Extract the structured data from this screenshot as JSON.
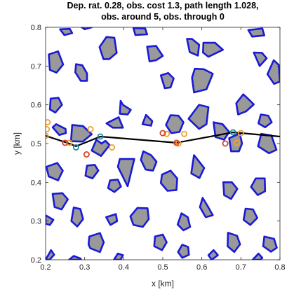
{
  "chart_data": {
    "type": "scatter",
    "title_lines": [
      "Dep. rat. 0.28, obs. cost 1.3, path length 1.028,",
      "obs. around 5, obs. through 0"
    ],
    "xlabel": "x [km]",
    "ylabel": "y [km]",
    "xlim": [
      0.2,
      0.8
    ],
    "ylim": [
      0.2,
      0.8
    ],
    "x_ticks": [
      0.2,
      0.3,
      0.4,
      0.5,
      0.6,
      0.7,
      0.8
    ],
    "y_ticks": [
      0.2,
      0.3,
      0.4,
      0.5,
      0.6,
      0.7,
      0.8
    ],
    "x_tick_labels": [
      "0.2",
      "0.3",
      "0.4",
      "0.5",
      "0.6",
      "0.7",
      "0.8"
    ],
    "y_tick_labels": [
      "0.2",
      "0.3",
      "0.4",
      "0.5",
      "0.6",
      "0.7",
      "0.8"
    ],
    "grid": false,
    "colors": {
      "obstacle_fill": "#999999",
      "obstacle_edge": "#1a1ad6",
      "path": "#000000",
      "orange_marker": "#f0a030",
      "red_marker": "#d9442a",
      "teal_marker": "#1f8aa8"
    },
    "path": [
      [
        0.2,
        0.52
      ],
      [
        0.255,
        0.502
      ],
      [
        0.278,
        0.493
      ],
      [
        0.34,
        0.518
      ],
      [
        0.535,
        0.502
      ],
      [
        0.68,
        0.529
      ],
      [
        0.8,
        0.518
      ]
    ],
    "markers": {
      "orange": [
        [
          0.2,
          0.52
        ],
        [
          0.203,
          0.537
        ],
        [
          0.205,
          0.555
        ],
        [
          0.261,
          0.502
        ],
        [
          0.315,
          0.537
        ],
        [
          0.37,
          0.49
        ],
        [
          0.51,
          0.525
        ],
        [
          0.54,
          0.5
        ],
        [
          0.555,
          0.525
        ],
        [
          0.69,
          0.502
        ],
        [
          0.7,
          0.527
        ]
      ],
      "red": [
        [
          0.25,
          0.502
        ],
        [
          0.305,
          0.472
        ],
        [
          0.5,
          0.527
        ],
        [
          0.535,
          0.502
        ],
        [
          0.66,
          0.5
        ]
      ],
      "teal": [
        [
          0.278,
          0.49
        ],
        [
          0.34,
          0.518
        ],
        [
          0.68,
          0.529
        ]
      ]
    },
    "obstacles": [
      [
        [
          0.237,
          0.795
        ],
        [
          0.262,
          0.796
        ],
        [
          0.268,
          0.785
        ],
        [
          0.248,
          0.78
        ]
      ],
      [
        [
          0.295,
          0.815
        ],
        [
          0.313,
          0.812
        ],
        [
          0.318,
          0.8
        ],
        [
          0.3,
          0.795
        ],
        [
          0.288,
          0.803
        ]
      ],
      [
        [
          0.356,
          0.775
        ],
        [
          0.376,
          0.773
        ],
        [
          0.382,
          0.734
        ],
        [
          0.363,
          0.718
        ],
        [
          0.348,
          0.718
        ],
        [
          0.338,
          0.749
        ]
      ],
      [
        [
          0.425,
          0.798
        ],
        [
          0.455,
          0.797
        ],
        [
          0.46,
          0.782
        ],
        [
          0.43,
          0.78
        ]
      ],
      [
        [
          0.46,
          0.75
        ],
        [
          0.483,
          0.752
        ],
        [
          0.5,
          0.726
        ],
        [
          0.483,
          0.715
        ],
        [
          0.466,
          0.712
        ]
      ],
      [
        [
          0.562,
          0.77
        ],
        [
          0.569,
          0.736
        ],
        [
          0.59,
          0.727
        ],
        [
          0.593,
          0.755
        ],
        [
          0.575,
          0.77
        ]
      ],
      [
        [
          0.604,
          0.76
        ],
        [
          0.634,
          0.76
        ],
        [
          0.654,
          0.742
        ],
        [
          0.617,
          0.724
        ],
        [
          0.603,
          0.735
        ]
      ],
      [
        [
          0.208,
          0.73
        ],
        [
          0.232,
          0.738
        ],
        [
          0.245,
          0.704
        ],
        [
          0.228,
          0.683
        ],
        [
          0.211,
          0.69
        ]
      ],
      [
        [
          0.278,
          0.705
        ],
        [
          0.294,
          0.702
        ],
        [
          0.306,
          0.681
        ],
        [
          0.306,
          0.662
        ],
        [
          0.29,
          0.662
        ],
        [
          0.276,
          0.684
        ]
      ],
      [
        [
          0.733,
          0.735
        ],
        [
          0.754,
          0.734
        ],
        [
          0.766,
          0.72
        ],
        [
          0.748,
          0.7
        ]
      ],
      [
        [
          0.719,
          0.793
        ],
        [
          0.755,
          0.797
        ],
        [
          0.76,
          0.779
        ],
        [
          0.729,
          0.776
        ]
      ],
      [
        [
          0.582,
          0.693
        ],
        [
          0.605,
          0.692
        ],
        [
          0.628,
          0.68
        ],
        [
          0.612,
          0.64
        ],
        [
          0.58,
          0.632
        ],
        [
          0.575,
          0.67
        ]
      ],
      [
        [
          0.495,
          0.676
        ],
        [
          0.514,
          0.682
        ],
        [
          0.528,
          0.668
        ],
        [
          0.52,
          0.645
        ],
        [
          0.505,
          0.643
        ]
      ],
      [
        [
          0.768,
          0.679
        ],
        [
          0.784,
          0.715
        ],
        [
          0.797,
          0.703
        ],
        [
          0.8,
          0.66
        ],
        [
          0.785,
          0.654
        ]
      ],
      [
        [
          0.706,
          0.627
        ],
        [
          0.722,
          0.612
        ],
        [
          0.733,
          0.601
        ],
        [
          0.713,
          0.583
        ],
        [
          0.693,
          0.575
        ],
        [
          0.688,
          0.604
        ]
      ],
      [
        [
          0.213,
          0.616
        ],
        [
          0.233,
          0.618
        ],
        [
          0.242,
          0.6
        ],
        [
          0.225,
          0.58
        ],
        [
          0.211,
          0.588
        ]
      ],
      [
        [
          0.392,
          0.61
        ],
        [
          0.398,
          0.6
        ],
        [
          0.418,
          0.587
        ],
        [
          0.41,
          0.575
        ],
        [
          0.39,
          0.577
        ]
      ],
      [
        [
          0.387,
          0.568
        ],
        [
          0.398,
          0.541
        ],
        [
          0.372,
          0.541
        ],
        [
          0.356,
          0.552
        ]
      ],
      [
        [
          0.593,
          0.6
        ],
        [
          0.617,
          0.594
        ],
        [
          0.612,
          0.55
        ],
        [
          0.593,
          0.538
        ],
        [
          0.566,
          0.564
        ]
      ],
      [
        [
          0.457,
          0.574
        ],
        [
          0.473,
          0.558
        ],
        [
          0.47,
          0.546
        ],
        [
          0.448,
          0.55
        ]
      ],
      [
        [
          0.227,
          0.55
        ],
        [
          0.251,
          0.538
        ],
        [
          0.252,
          0.527
        ],
        [
          0.235,
          0.522
        ],
        [
          0.218,
          0.542
        ]
      ],
      [
        [
          0.52,
          0.573
        ],
        [
          0.54,
          0.572
        ],
        [
          0.553,
          0.555
        ],
        [
          0.543,
          0.53
        ],
        [
          0.522,
          0.527
        ],
        [
          0.508,
          0.548
        ]
      ],
      [
        [
          0.268,
          0.548
        ],
        [
          0.296,
          0.545
        ],
        [
          0.318,
          0.524
        ],
        [
          0.295,
          0.505
        ],
        [
          0.265,
          0.506
        ]
      ],
      [
        [
          0.33,
          0.51
        ],
        [
          0.343,
          0.5
        ],
        [
          0.353,
          0.507
        ],
        [
          0.364,
          0.496
        ],
        [
          0.342,
          0.468
        ],
        [
          0.318,
          0.482
        ]
      ],
      [
        [
          0.63,
          0.555
        ],
        [
          0.653,
          0.55
        ],
        [
          0.67,
          0.53
        ],
        [
          0.657,
          0.51
        ],
        [
          0.635,
          0.517
        ]
      ],
      [
        [
          0.751,
          0.575
        ],
        [
          0.77,
          0.572
        ],
        [
          0.779,
          0.555
        ],
        [
          0.762,
          0.542
        ],
        [
          0.745,
          0.552
        ]
      ],
      [
        [
          0.752,
          0.525
        ],
        [
          0.778,
          0.521
        ],
        [
          0.791,
          0.484
        ],
        [
          0.772,
          0.475
        ],
        [
          0.744,
          0.493
        ]
      ],
      [
        [
          0.67,
          0.514
        ],
        [
          0.697,
          0.526
        ],
        [
          0.703,
          0.5
        ],
        [
          0.695,
          0.48
        ],
        [
          0.675,
          0.48
        ]
      ],
      [
        [
          0.202,
          0.44
        ],
        [
          0.23,
          0.45
        ],
        [
          0.244,
          0.43
        ],
        [
          0.232,
          0.405
        ],
        [
          0.208,
          0.415
        ]
      ],
      [
        [
          0.415,
          0.41
        ],
        [
          0.427,
          0.46
        ],
        [
          0.39,
          0.46
        ],
        [
          0.385,
          0.44
        ],
        [
          0.41,
          0.39
        ]
      ],
      [
        [
          0.45,
          0.48
        ],
        [
          0.47,
          0.47
        ],
        [
          0.484,
          0.453
        ],
        [
          0.475,
          0.43
        ],
        [
          0.456,
          0.433
        ],
        [
          0.444,
          0.458
        ]
      ],
      [
        [
          0.58,
          0.47
        ],
        [
          0.592,
          0.455
        ],
        [
          0.606,
          0.437
        ],
        [
          0.594,
          0.411
        ],
        [
          0.573,
          0.423
        ]
      ],
      [
        [
          0.306,
          0.443
        ],
        [
          0.326,
          0.445
        ],
        [
          0.335,
          0.43
        ],
        [
          0.32,
          0.41
        ],
        [
          0.302,
          0.417
        ]
      ],
      [
        [
          0.218,
          0.37
        ],
        [
          0.243,
          0.372
        ],
        [
          0.257,
          0.356
        ],
        [
          0.241,
          0.33
        ],
        [
          0.223,
          0.336
        ]
      ],
      [
        [
          0.498,
          0.42
        ],
        [
          0.52,
          0.43
        ],
        [
          0.537,
          0.41
        ],
        [
          0.535,
          0.38
        ],
        [
          0.512,
          0.378
        ],
        [
          0.495,
          0.398
        ]
      ],
      [
        [
          0.738,
          0.41
        ],
        [
          0.761,
          0.41
        ],
        [
          0.762,
          0.377
        ],
        [
          0.743,
          0.367
        ],
        [
          0.726,
          0.388
        ]
      ],
      [
        [
          0.655,
          0.4
        ],
        [
          0.677,
          0.4
        ],
        [
          0.691,
          0.383
        ],
        [
          0.675,
          0.357
        ],
        [
          0.657,
          0.367
        ]
      ],
      [
        [
          0.365,
          0.405
        ],
        [
          0.385,
          0.407
        ],
        [
          0.393,
          0.389
        ],
        [
          0.376,
          0.375
        ],
        [
          0.36,
          0.385
        ]
      ],
      [
        [
          0.272,
          0.335
        ],
        [
          0.289,
          0.331
        ],
        [
          0.296,
          0.305
        ],
        [
          0.281,
          0.286
        ],
        [
          0.266,
          0.3
        ]
      ],
      [
        [
          0.435,
          0.334
        ],
        [
          0.461,
          0.333
        ],
        [
          0.464,
          0.305
        ],
        [
          0.449,
          0.285
        ],
        [
          0.425,
          0.29
        ],
        [
          0.417,
          0.312
        ]
      ],
      [
        [
          0.2,
          0.315
        ],
        [
          0.22,
          0.303
        ],
        [
          0.211,
          0.29
        ],
        [
          0.2,
          0.293
        ]
      ],
      [
        [
          0.548,
          0.32
        ],
        [
          0.564,
          0.31
        ],
        [
          0.57,
          0.285
        ],
        [
          0.553,
          0.276
        ],
        [
          0.538,
          0.291
        ]
      ],
      [
        [
          0.602,
          0.36
        ],
        [
          0.614,
          0.34
        ],
        [
          0.628,
          0.315
        ],
        [
          0.61,
          0.31
        ],
        [
          0.595,
          0.336
        ]
      ],
      [
        [
          0.38,
          0.318
        ],
        [
          0.383,
          0.3
        ],
        [
          0.366,
          0.29
        ],
        [
          0.355,
          0.31
        ]
      ],
      [
        [
          0.712,
          0.332
        ],
        [
          0.731,
          0.33
        ],
        [
          0.742,
          0.308
        ],
        [
          0.724,
          0.29
        ],
        [
          0.707,
          0.303
        ]
      ],
      [
        [
          0.312,
          0.26
        ],
        [
          0.339,
          0.269
        ],
        [
          0.349,
          0.245
        ],
        [
          0.339,
          0.22
        ],
        [
          0.314,
          0.23
        ],
        [
          0.31,
          0.24
        ]
      ],
      [
        [
          0.48,
          0.26
        ],
        [
          0.5,
          0.265
        ],
        [
          0.51,
          0.245
        ],
        [
          0.498,
          0.225
        ],
        [
          0.478,
          0.235
        ]
      ],
      [
        [
          0.667,
          0.27
        ],
        [
          0.69,
          0.262
        ],
        [
          0.698,
          0.24
        ],
        [
          0.683,
          0.22
        ],
        [
          0.666,
          0.235
        ]
      ],
      [
        [
          0.76,
          0.26
        ],
        [
          0.785,
          0.254
        ],
        [
          0.792,
          0.231
        ],
        [
          0.777,
          0.221
        ],
        [
          0.757,
          0.235
        ]
      ],
      [
        [
          0.55,
          0.239
        ],
        [
          0.565,
          0.233
        ],
        [
          0.567,
          0.213
        ],
        [
          0.55,
          0.205
        ],
        [
          0.539,
          0.22
        ]
      ],
      [
        [
          0.385,
          0.216
        ],
        [
          0.398,
          0.212
        ],
        [
          0.392,
          0.2
        ],
        [
          0.375,
          0.2
        ]
      ],
      [
        [
          0.214,
          0.225
        ],
        [
          0.222,
          0.213
        ],
        [
          0.21,
          0.2
        ],
        [
          0.2,
          0.2
        ]
      ],
      [
        [
          0.272,
          0.21
        ],
        [
          0.29,
          0.203
        ],
        [
          0.29,
          0.2
        ],
        [
          0.26,
          0.2
        ]
      ],
      [
        [
          0.73,
          0.2
        ],
        [
          0.745,
          0.216
        ],
        [
          0.755,
          0.205
        ],
        [
          0.75,
          0.2
        ]
      ],
      [
        [
          0.63,
          0.225
        ],
        [
          0.641,
          0.212
        ],
        [
          0.625,
          0.2
        ],
        [
          0.617,
          0.212
        ]
      ]
    ]
  }
}
